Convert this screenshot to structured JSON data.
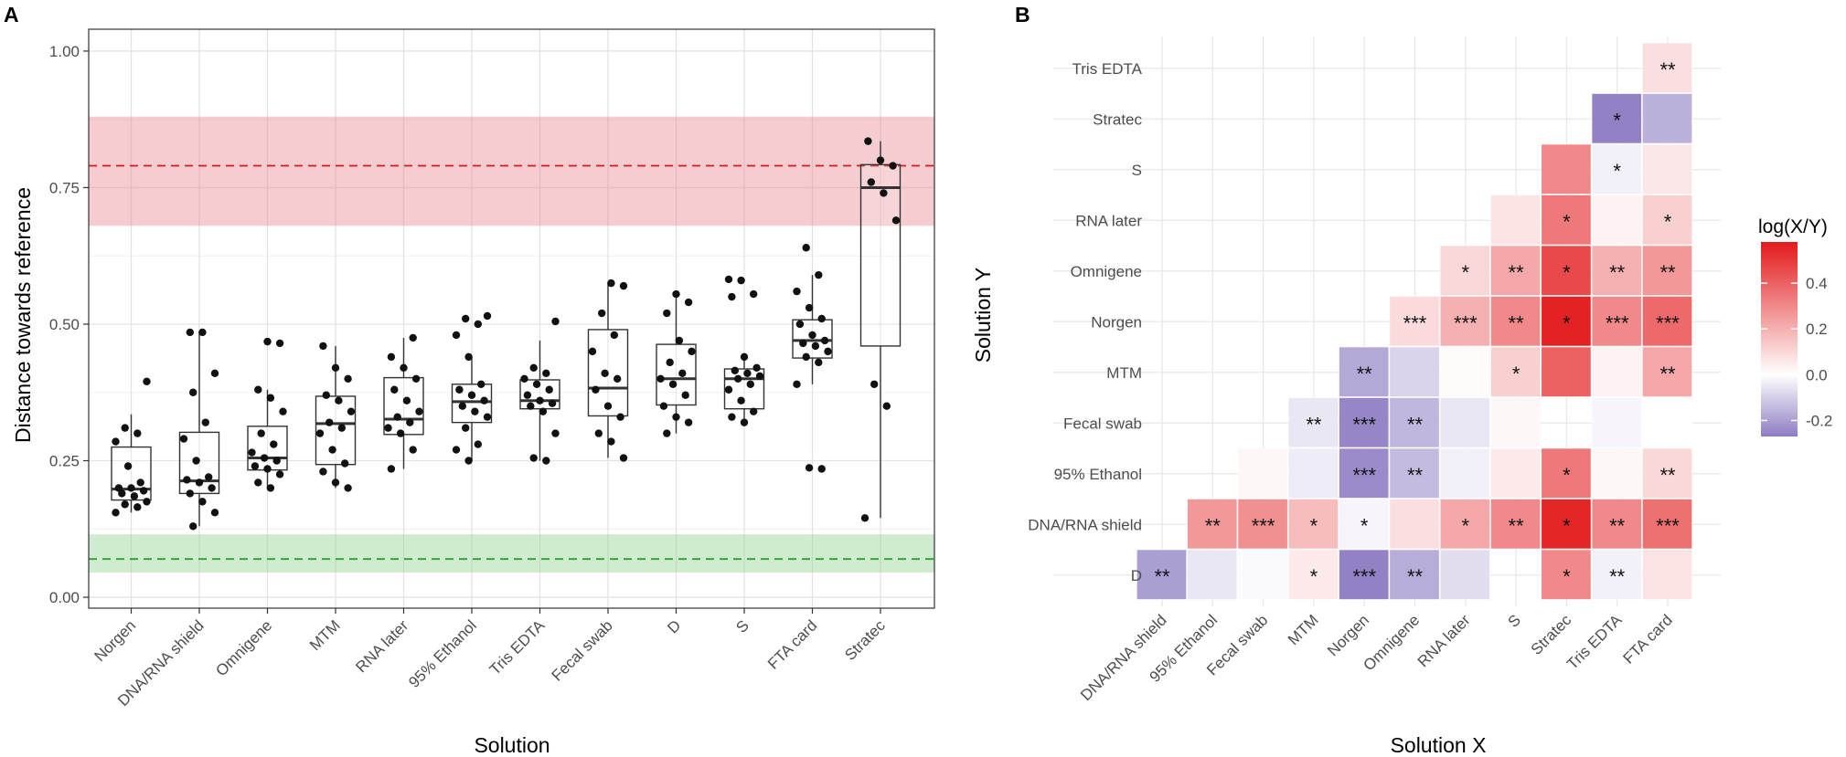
{
  "chart_data": [
    {
      "type": "boxplot",
      "panel_label": "A",
      "xlabel": "Solution",
      "ylabel": "Distance towards reference",
      "ylim": [
        -0.02,
        1.04
      ],
      "yticks": [
        0.0,
        0.25,
        0.5,
        0.75,
        1.0
      ],
      "ytick_labels": [
        "0.00",
        "0.25",
        "0.50",
        "0.75",
        "1.00"
      ],
      "grid": true,
      "reference_bands": [
        {
          "name": "upper",
          "color": "#e8888e",
          "center": 0.79,
          "low": 0.68,
          "high": 0.88
        },
        {
          "name": "lower",
          "color": "#8fd18f",
          "center": 0.07,
          "low": 0.045,
          "high": 0.115
        }
      ],
      "categories": [
        "Norgen",
        "DNA/RNA shield",
        "Omnigene",
        "MTM",
        "RNA later",
        "95% Ethanol",
        "Tris EDTA",
        "Fecal swab",
        "D",
        "S",
        "FTA card",
        "Stratec"
      ],
      "boxes": [
        {
          "q1": 0.178,
          "median": 0.198,
          "q3": 0.275,
          "whisker_low": 0.155,
          "whisker_high": 0.335
        },
        {
          "q1": 0.19,
          "median": 0.213,
          "q3": 0.302,
          "whisker_low": 0.13,
          "whisker_high": 0.485
        },
        {
          "q1": 0.233,
          "median": 0.255,
          "q3": 0.313,
          "whisker_low": 0.2,
          "whisker_high": 0.38
        },
        {
          "q1": 0.243,
          "median": 0.318,
          "q3": 0.368,
          "whisker_low": 0.2,
          "whisker_high": 0.46
        },
        {
          "q1": 0.298,
          "median": 0.326,
          "q3": 0.402,
          "whisker_low": 0.235,
          "whisker_high": 0.475
        },
        {
          "q1": 0.32,
          "median": 0.358,
          "q3": 0.39,
          "whisker_low": 0.25,
          "whisker_high": 0.44
        },
        {
          "q1": 0.345,
          "median": 0.36,
          "q3": 0.398,
          "whisker_low": 0.25,
          "whisker_high": 0.47
        },
        {
          "q1": 0.332,
          "median": 0.383,
          "q3": 0.49,
          "whisker_low": 0.255,
          "whisker_high": 0.575
        },
        {
          "q1": 0.352,
          "median": 0.4,
          "q3": 0.463,
          "whisker_low": 0.3,
          "whisker_high": 0.555
        },
        {
          "q1": 0.345,
          "median": 0.4,
          "q3": 0.418,
          "whisker_low": 0.32,
          "whisker_high": 0.44
        },
        {
          "q1": 0.438,
          "median": 0.47,
          "q3": 0.508,
          "whisker_low": 0.39,
          "whisker_high": 0.59
        },
        {
          "q1": 0.46,
          "median": 0.75,
          "q3": 0.792,
          "whisker_low": 0.145,
          "whisker_high": 0.835
        }
      ],
      "points": [
        [
          0.155,
          0.165,
          0.17,
          0.175,
          0.185,
          0.19,
          0.195,
          0.2,
          0.2,
          0.21,
          0.24,
          0.285,
          0.3,
          0.31,
          0.395
        ],
        [
          0.13,
          0.155,
          0.175,
          0.19,
          0.2,
          0.21,
          0.215,
          0.22,
          0.25,
          0.29,
          0.32,
          0.375,
          0.41,
          0.485,
          0.485
        ],
        [
          0.2,
          0.21,
          0.225,
          0.235,
          0.24,
          0.25,
          0.255,
          0.265,
          0.28,
          0.3,
          0.34,
          0.365,
          0.38,
          0.465,
          0.468
        ],
        [
          0.2,
          0.21,
          0.23,
          0.245,
          0.27,
          0.3,
          0.31,
          0.32,
          0.34,
          0.36,
          0.37,
          0.4,
          0.42,
          0.46
        ],
        [
          0.235,
          0.27,
          0.3,
          0.31,
          0.32,
          0.33,
          0.34,
          0.36,
          0.38,
          0.4,
          0.42,
          0.44,
          0.475
        ],
        [
          0.25,
          0.27,
          0.28,
          0.31,
          0.33,
          0.34,
          0.35,
          0.36,
          0.37,
          0.38,
          0.39,
          0.44,
          0.48,
          0.5,
          0.51,
          0.515
        ],
        [
          0.25,
          0.255,
          0.3,
          0.34,
          0.35,
          0.355,
          0.36,
          0.37,
          0.38,
          0.39,
          0.4,
          0.41,
          0.42,
          0.505
        ],
        [
          0.255,
          0.285,
          0.3,
          0.33,
          0.35,
          0.38,
          0.4,
          0.41,
          0.45,
          0.48,
          0.52,
          0.57,
          0.575
        ],
        [
          0.3,
          0.32,
          0.33,
          0.35,
          0.37,
          0.39,
          0.4,
          0.41,
          0.43,
          0.45,
          0.47,
          0.52,
          0.54,
          0.555
        ],
        [
          0.32,
          0.33,
          0.34,
          0.36,
          0.38,
          0.39,
          0.4,
          0.405,
          0.41,
          0.415,
          0.42,
          0.44,
          0.55,
          0.555,
          0.58,
          0.582
        ],
        [
          0.235,
          0.237,
          0.39,
          0.43,
          0.44,
          0.45,
          0.46,
          0.465,
          0.47,
          0.48,
          0.5,
          0.51,
          0.53,
          0.56,
          0.59,
          0.64
        ],
        [
          0.145,
          0.35,
          0.39,
          0.69,
          0.74,
          0.76,
          0.79,
          0.8,
          0.835
        ]
      ]
    },
    {
      "type": "heatmap",
      "panel_label": "B",
      "xlabel": "Solution X",
      "ylabel": "Solution Y",
      "x_categories": [
        "DNA/RNA shield",
        "95% Ethanol",
        "Fecal swab",
        "MTM",
        "Norgen",
        "Omnigene",
        "RNA later",
        "S",
        "Stratec",
        "Tris EDTA",
        "FTA card"
      ],
      "y_categories": [
        "Tris EDTA",
        "Stratec",
        "S",
        "RNA later",
        "Omnigene",
        "Norgen",
        "MTM",
        "Fecal swab",
        "95% Ethanol",
        "DNA/RNA shield",
        "D"
      ],
      "legend": {
        "title": "log(X/Y)",
        "ticks": [
          0.4,
          0.2,
          0.0,
          -0.2
        ],
        "tick_labels": [
          "0.4",
          "0.2",
          "0.0",
          "-0.2"
        ],
        "range": [
          -0.27,
          0.58
        ],
        "low_color": "#8e7cc3",
        "mid_color": "#ffffff",
        "high_color": "#e31a1c"
      },
      "cells": [
        {
          "x": 10,
          "y": 0,
          "value": 0.08,
          "sig": "**"
        },
        {
          "x": 9,
          "y": 1,
          "value": -0.26,
          "sig": "*"
        },
        {
          "x": 10,
          "y": 1,
          "value": -0.16,
          "sig": ""
        },
        {
          "x": 8,
          "y": 2,
          "value": 0.3,
          "sig": ""
        },
        {
          "x": 9,
          "y": 2,
          "value": -0.03,
          "sig": "*"
        },
        {
          "x": 10,
          "y": 2,
          "value": 0.06,
          "sig": ""
        },
        {
          "x": 7,
          "y": 3,
          "value": 0.07,
          "sig": ""
        },
        {
          "x": 8,
          "y": 3,
          "value": 0.34,
          "sig": "*"
        },
        {
          "x": 9,
          "y": 3,
          "value": 0.03,
          "sig": ""
        },
        {
          "x": 10,
          "y": 3,
          "value": 0.12,
          "sig": "*"
        },
        {
          "x": 6,
          "y": 4,
          "value": 0.1,
          "sig": "*"
        },
        {
          "x": 7,
          "y": 4,
          "value": 0.22,
          "sig": "**"
        },
        {
          "x": 8,
          "y": 4,
          "value": 0.46,
          "sig": "*"
        },
        {
          "x": 9,
          "y": 4,
          "value": 0.2,
          "sig": "**"
        },
        {
          "x": 10,
          "y": 4,
          "value": 0.26,
          "sig": "**"
        },
        {
          "x": 5,
          "y": 5,
          "value": 0.09,
          "sig": "***"
        },
        {
          "x": 6,
          "y": 5,
          "value": 0.2,
          "sig": "***"
        },
        {
          "x": 7,
          "y": 5,
          "value": 0.3,
          "sig": "**"
        },
        {
          "x": 8,
          "y": 5,
          "value": 0.56,
          "sig": "*"
        },
        {
          "x": 9,
          "y": 5,
          "value": 0.3,
          "sig": "***"
        },
        {
          "x": 10,
          "y": 5,
          "value": 0.38,
          "sig": "***"
        },
        {
          "x": 4,
          "y": 6,
          "value": -0.18,
          "sig": "**"
        },
        {
          "x": 5,
          "y": 6,
          "value": -0.09,
          "sig": ""
        },
        {
          "x": 6,
          "y": 6,
          "value": 0.01,
          "sig": ""
        },
        {
          "x": 7,
          "y": 6,
          "value": 0.12,
          "sig": "*"
        },
        {
          "x": 8,
          "y": 6,
          "value": 0.4,
          "sig": ""
        },
        {
          "x": 9,
          "y": 6,
          "value": 0.03,
          "sig": ""
        },
        {
          "x": 10,
          "y": 6,
          "value": 0.22,
          "sig": "**"
        },
        {
          "x": 3,
          "y": 7,
          "value": -0.05,
          "sig": "**"
        },
        {
          "x": 4,
          "y": 7,
          "value": -0.25,
          "sig": "***"
        },
        {
          "x": 5,
          "y": 7,
          "value": -0.15,
          "sig": "**"
        },
        {
          "x": 6,
          "y": 7,
          "value": -0.05,
          "sig": ""
        },
        {
          "x": 7,
          "y": 7,
          "value": 0.02,
          "sig": ""
        },
        {
          "x": 9,
          "y": 7,
          "value": -0.02,
          "sig": ""
        },
        {
          "x": 10,
          "y": 7,
          "value": 0.0,
          "sig": ""
        },
        {
          "x": 2,
          "y": 8,
          "value": 0.02,
          "sig": ""
        },
        {
          "x": 3,
          "y": 8,
          "value": -0.04,
          "sig": ""
        },
        {
          "x": 4,
          "y": 8,
          "value": -0.24,
          "sig": "***"
        },
        {
          "x": 5,
          "y": 8,
          "value": -0.14,
          "sig": "**"
        },
        {
          "x": 6,
          "y": 8,
          "value": -0.03,
          "sig": ""
        },
        {
          "x": 7,
          "y": 8,
          "value": 0.05,
          "sig": ""
        },
        {
          "x": 8,
          "y": 8,
          "value": 0.34,
          "sig": "*"
        },
        {
          "x": 9,
          "y": 8,
          "value": 0.02,
          "sig": ""
        },
        {
          "x": 10,
          "y": 8,
          "value": 0.1,
          "sig": "**"
        },
        {
          "x": 1,
          "y": 9,
          "value": 0.26,
          "sig": "**"
        },
        {
          "x": 2,
          "y": 9,
          "value": 0.28,
          "sig": "***"
        },
        {
          "x": 3,
          "y": 9,
          "value": 0.17,
          "sig": "*"
        },
        {
          "x": 4,
          "y": 9,
          "value": -0.02,
          "sig": "*"
        },
        {
          "x": 5,
          "y": 9,
          "value": 0.08,
          "sig": ""
        },
        {
          "x": 6,
          "y": 9,
          "value": 0.22,
          "sig": "*"
        },
        {
          "x": 7,
          "y": 9,
          "value": 0.3,
          "sig": "**"
        },
        {
          "x": 8,
          "y": 9,
          "value": 0.55,
          "sig": "*"
        },
        {
          "x": 9,
          "y": 9,
          "value": 0.3,
          "sig": "**"
        },
        {
          "x": 10,
          "y": 9,
          "value": 0.36,
          "sig": "***"
        },
        {
          "x": 0,
          "y": 10,
          "value": -0.2,
          "sig": "**"
        },
        {
          "x": 1,
          "y": 10,
          "value": -0.05,
          "sig": ""
        },
        {
          "x": 2,
          "y": 10,
          "value": -0.01,
          "sig": ""
        },
        {
          "x": 3,
          "y": 10,
          "value": 0.05,
          "sig": "*"
        },
        {
          "x": 4,
          "y": 10,
          "value": -0.26,
          "sig": "***"
        },
        {
          "x": 5,
          "y": 10,
          "value": -0.17,
          "sig": "**"
        },
        {
          "x": 6,
          "y": 10,
          "value": -0.07,
          "sig": ""
        },
        {
          "x": 8,
          "y": 10,
          "value": 0.3,
          "sig": "*"
        },
        {
          "x": 9,
          "y": 10,
          "value": -0.03,
          "sig": "**"
        },
        {
          "x": 10,
          "y": 10,
          "value": 0.07,
          "sig": ""
        }
      ]
    }
  ]
}
